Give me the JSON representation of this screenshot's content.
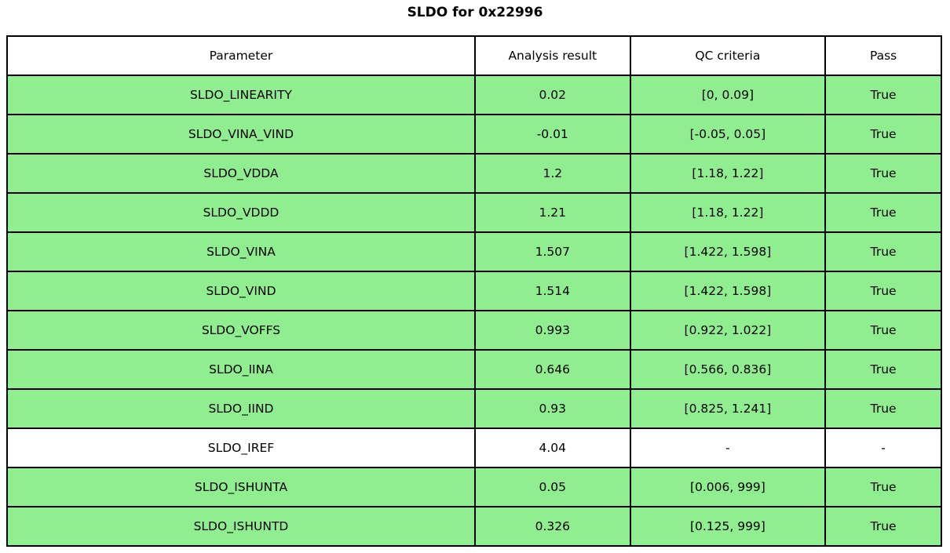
{
  "figure": {
    "title": "SLDO for 0x22996"
  },
  "colors": {
    "pass_row_green": "#90ee90",
    "neutral_row_white": "#ffffff",
    "border_black": "#000000",
    "text_black": "#000000"
  },
  "chart_data": {
    "type": "table",
    "title": "SLDO for 0x22996",
    "columns": [
      "Parameter",
      "Analysis result",
      "QC criteria",
      "Pass"
    ],
    "rows": [
      [
        "SLDO_LINEARITY",
        "0.02",
        "[0, 0.09]",
        "True"
      ],
      [
        "SLDO_VINA_VIND",
        "-0.01",
        "[-0.05, 0.05]",
        "True"
      ],
      [
        "SLDO_VDDA",
        "1.2",
        "[1.18, 1.22]",
        "True"
      ],
      [
        "SLDO_VDDD",
        "1.21",
        "[1.18, 1.22]",
        "True"
      ],
      [
        "SLDO_VINA",
        "1.507",
        "[1.422, 1.598]",
        "True"
      ],
      [
        "SLDO_VIND",
        "1.514",
        "[1.422, 1.598]",
        "True"
      ],
      [
        "SLDO_VOFFS",
        "0.993",
        "[0.922, 1.022]",
        "True"
      ],
      [
        "SLDO_IINA",
        "0.646",
        "[0.566, 0.836]",
        "True"
      ],
      [
        "SLDO_IIND",
        "0.93",
        "[0.825, 1.241]",
        "True"
      ],
      [
        "SLDO_IREF",
        "4.04",
        "-",
        "-"
      ],
      [
        "SLDO_ISHUNTA",
        "0.05",
        "[0.006, 999]",
        "True"
      ],
      [
        "SLDO_ISHUNTD",
        "0.326",
        "[0.125, 999]",
        "True"
      ]
    ],
    "row_colors": [
      "green",
      "green",
      "green",
      "green",
      "green",
      "green",
      "green",
      "green",
      "green",
      "white",
      "green",
      "green"
    ],
    "layout": {
      "header_background": "#ffffff",
      "grid": "all-borders",
      "title_position": "top-center"
    }
  }
}
